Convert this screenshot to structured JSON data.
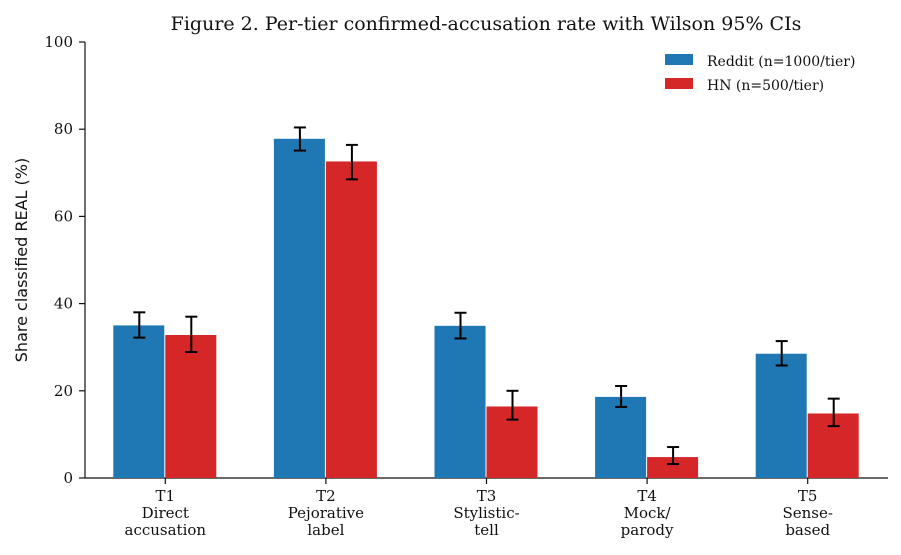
{
  "chart_data": {
    "type": "bar",
    "title": "Figure 2. Per-tier confirmed-accusation rate with Wilson 95% CIs",
    "xlabel": "",
    "ylabel": "Share classified REAL (%)",
    "ylim": [
      0,
      100
    ],
    "yticks": [
      0,
      20,
      40,
      60,
      80,
      100
    ],
    "grid": false,
    "legend_position": "top-right",
    "categories": [
      {
        "code": "T1",
        "lines": [
          "Direct",
          "accusation"
        ]
      },
      {
        "code": "T2",
        "lines": [
          "Pejorative",
          "label"
        ]
      },
      {
        "code": "T3",
        "lines": [
          "Stylistic-",
          "tell"
        ]
      },
      {
        "code": "T4",
        "lines": [
          "Mock/",
          "parody"
        ]
      },
      {
        "code": "T5",
        "lines": [
          "Sense-",
          "based"
        ]
      }
    ],
    "series": [
      {
        "name": "Reddit (n=1000/tier)",
        "color": "#1f77b4",
        "values": [
          35.0,
          77.8,
          34.9,
          18.6,
          28.5
        ],
        "ci_low": [
          32.2,
          75.1,
          32.0,
          16.3,
          25.8
        ],
        "ci_high": [
          38.0,
          80.4,
          37.9,
          21.1,
          31.4
        ]
      },
      {
        "name": "HN (n=500/tier)",
        "color": "#d62728",
        "values": [
          32.8,
          72.6,
          16.4,
          4.8,
          14.8
        ],
        "ci_low": [
          28.9,
          68.5,
          13.4,
          3.2,
          11.9
        ],
        "ci_high": [
          37.0,
          76.4,
          20.0,
          7.1,
          18.2
        ]
      }
    ]
  }
}
